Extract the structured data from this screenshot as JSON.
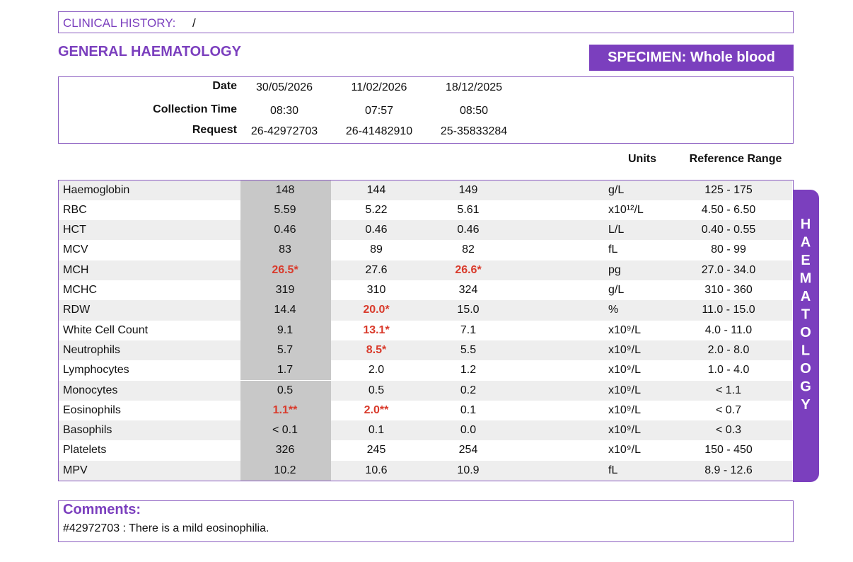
{
  "clinical_history": {
    "label": "CLINICAL HISTORY:",
    "value": "/"
  },
  "section_title": "GENERAL HAEMATOLOGY",
  "specimen": "SPECIMEN: Whole blood",
  "header": {
    "labels": [
      "Date",
      "Collection Time",
      "Request"
    ],
    "columns": [
      [
        "30/05/2026",
        "08:30",
        "26-42972703"
      ],
      [
        "11/02/2026",
        "07:57",
        "26-41482910"
      ],
      [
        "18/12/2025",
        "08:50",
        "25-35833284"
      ]
    ]
  },
  "table": {
    "units_heading": "Units",
    "range_heading": "Reference Range",
    "rows": [
      {
        "name": "Haemoglobin",
        "results": [
          "148",
          "144",
          "149"
        ],
        "unit": "g/L",
        "range": "125 - 175"
      },
      {
        "name": "RBC",
        "results": [
          "5.59",
          "5.22",
          "5.61"
        ],
        "unit": "x10¹²/L",
        "range": "4.50 - 6.50"
      },
      {
        "name": "HCT",
        "results": [
          "0.46",
          "0.46",
          "0.46"
        ],
        "unit": "L/L",
        "range": "0.40 - 0.55"
      },
      {
        "name": "MCV",
        "results": [
          "83",
          "89",
          "82"
        ],
        "unit": "fL",
        "range": "80 - 99"
      },
      {
        "name": "MCH",
        "results": [
          "26.5*",
          "27.6",
          "26.6*"
        ],
        "unit": "pg",
        "range": "27.0 - 34.0"
      },
      {
        "name": "MCHC",
        "results": [
          "319",
          "310",
          "324"
        ],
        "unit": "g/L",
        "range": "310 - 360"
      },
      {
        "name": "RDW",
        "results": [
          "14.4",
          "20.0*",
          "15.0"
        ],
        "unit": "%",
        "range": "11.0 - 15.0"
      },
      {
        "name": "White Cell Count",
        "results": [
          "9.1",
          "13.1*",
          "7.1"
        ],
        "unit": "x10⁹/L",
        "range": "4.0 - 11.0"
      },
      {
        "name": "Neutrophils",
        "results": [
          "5.7",
          "8.5*",
          "5.5"
        ],
        "unit": "x10⁹/L",
        "range": "2.0 - 8.0"
      },
      {
        "name": "Lymphocytes",
        "results": [
          "1.7",
          "2.0",
          "1.2"
        ],
        "unit": "x10⁹/L",
        "range": "1.0 - 4.0"
      },
      {
        "name": "Monocytes",
        "results": [
          "0.5",
          "0.5",
          "0.2"
        ],
        "unit": "x10⁹/L",
        "range": "< 1.1"
      },
      {
        "name": "Eosinophils",
        "results": [
          "1.1**",
          "2.0**",
          "0.1"
        ],
        "unit": "x10⁹/L",
        "range": "< 0.7"
      },
      {
        "name": "Basophils",
        "results": [
          "< 0.1",
          "0.1",
          "0.0"
        ],
        "unit": "x10⁹/L",
        "range": "< 0.3"
      },
      {
        "name": "Platelets",
        "results": [
          "326",
          "245",
          "254"
        ],
        "unit": "x10⁹/L",
        "range": "150 - 450"
      },
      {
        "name": "MPV",
        "results": [
          "10.2",
          "10.6",
          "10.9"
        ],
        "unit": "fL",
        "range": "8.9 - 12.6"
      }
    ]
  },
  "side_label": "HAEMATOLOGY",
  "comments": {
    "title": "Comments:",
    "text": "#42972703 : There is a mild eosinophilia."
  }
}
